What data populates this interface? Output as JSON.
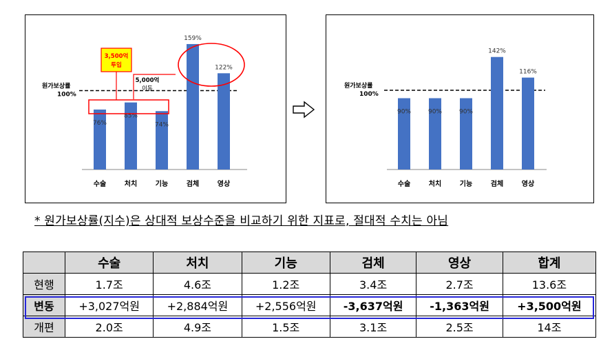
{
  "chart_data": [
    {
      "type": "bar",
      "categories": [
        "수술",
        "처치",
        "기능",
        "검체",
        "영상"
      ],
      "values": [
        76,
        85,
        74,
        159,
        122
      ],
      "value_labels": [
        "76%",
        "85%",
        "74%",
        "159%",
        "122%"
      ],
      "reference_line": {
        "value": 100,
        "label_line1": "원가보상률",
        "label_line2": "100%"
      },
      "annotations": {
        "injection_line1": "3,500억",
        "injection_line2": "투입",
        "shift_line1": "5,000억",
        "shift_line2": "이동"
      },
      "bar_color": "#4472c4",
      "highlight_color": "#ff0000",
      "callout_fill": "#ffff00"
    },
    {
      "type": "bar",
      "categories": [
        "수술",
        "처치",
        "기능",
        "검체",
        "영상"
      ],
      "values": [
        90,
        90,
        90,
        142,
        116
      ],
      "value_labels": [
        "90%",
        "90%",
        "90%",
        "142%",
        "116%"
      ],
      "reference_line": {
        "value": 100,
        "label_line1": "원가보상률",
        "label_line2": "100%"
      },
      "bar_color": "#4472c4"
    }
  ],
  "arrow_symbol": "⇨",
  "footnote": "* 원가보상률(지수)은 상대적 보상수준을 비교하기 위한 지표로, 절대적 수치는 아님",
  "table": {
    "headers": [
      "",
      "수술",
      "처치",
      "기능",
      "검체",
      "영상",
      "합계"
    ],
    "rows": [
      {
        "label": "현행",
        "cells": [
          "1.7조",
          "4.6조",
          "1.2조",
          "3.4조",
          "2.7조",
          "13.6조"
        ]
      },
      {
        "label": "변동",
        "cells": [
          "+3,027억원",
          "+2,884억원",
          "+2,556억원",
          "-3,637억원",
          "-1,363억원",
          "+3,500억원"
        ]
      },
      {
        "label": "개편",
        "cells": [
          "2.0조",
          "4.9조",
          "1.5조",
          "3.1조",
          "2.5조",
          "14조"
        ]
      }
    ],
    "highlight_row_color": "#2626d9"
  }
}
